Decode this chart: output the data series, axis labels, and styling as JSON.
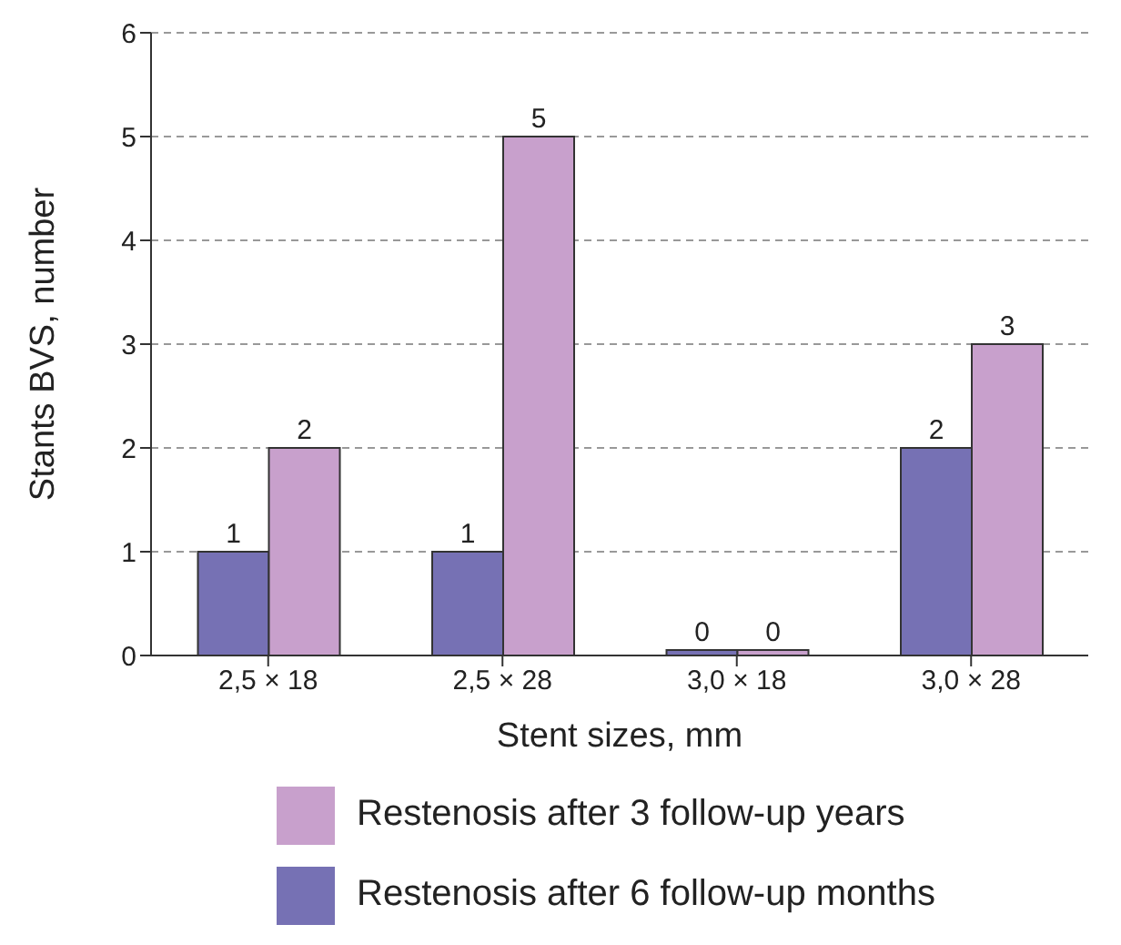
{
  "chart_data": {
    "type": "bar",
    "xlabel": "Stent sizes, mm",
    "ylabel": "Stants BVS, number",
    "categories": [
      "2,5 × 18",
      "2,5 × 28",
      "3,0 × 18",
      "3,0 × 28"
    ],
    "series": [
      {
        "name": "Restenosis after 6 follow-up months",
        "color": "#7671b4",
        "values": [
          1,
          1,
          0,
          2
        ]
      },
      {
        "name": "Restenosis after 3 follow-up years",
        "color": "#c8a0cc",
        "values": [
          2,
          5,
          0,
          3
        ]
      }
    ],
    "ylim": [
      0,
      6
    ],
    "yticks": [
      0,
      1,
      2,
      3,
      4,
      5,
      6
    ],
    "grid": "y",
    "legend": "bottom",
    "data_labels": true
  }
}
